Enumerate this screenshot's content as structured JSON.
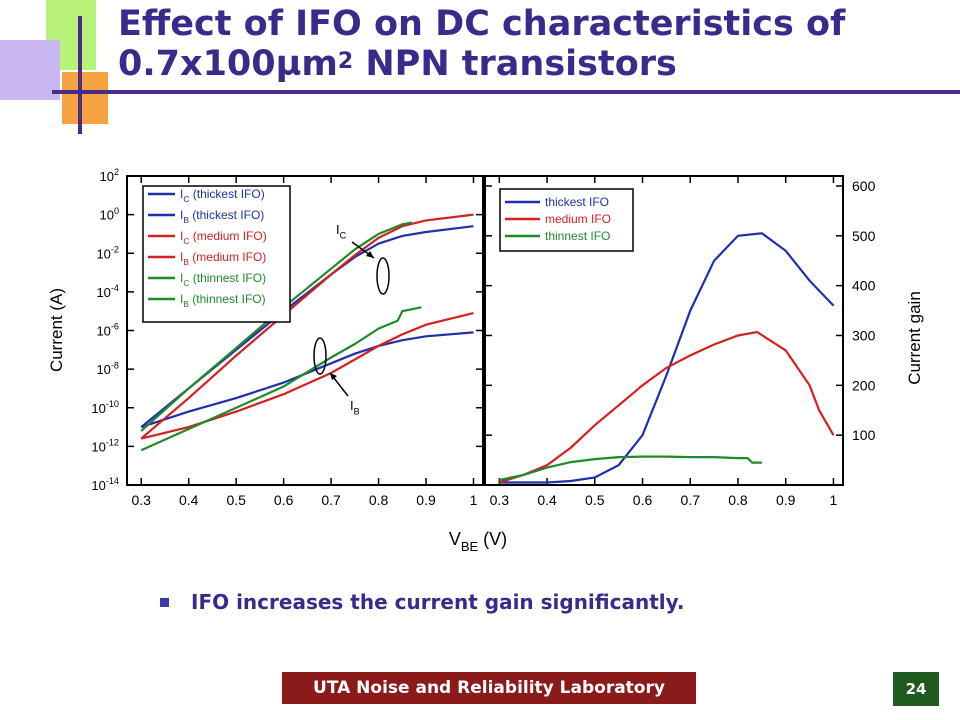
{
  "slide": {
    "title_main": "Effect of IFO on DC characteristics of 0.7x100µm",
    "title_sup": "2",
    "title_tail": " NPN transistors",
    "bullet": "IFO increases the current gain significantly.",
    "footer": "UTA Noise and Reliability Laboratory",
    "page_number": "24"
  },
  "colors": {
    "thickest": "#1f2fae",
    "medium": "#d42020",
    "thinnest": "#1f8a2a"
  },
  "chart_data": [
    {
      "type": "line",
      "ylabel": "Current (A)",
      "xlabel": "V_BE (V)",
      "x_ticks": [
        "0.3",
        "0.4",
        "0.5",
        "0.6",
        "0.7",
        "0.8",
        "0.9",
        "1"
      ],
      "y_scale": "log",
      "y_ticks": [
        {
          "mant": "10",
          "exp": "2"
        },
        {
          "mant": "10",
          "exp": "0"
        },
        {
          "mant": "10",
          "exp": "-2"
        },
        {
          "mant": "10",
          "exp": "-4"
        },
        {
          "mant": "10",
          "exp": "-6"
        },
        {
          "mant": "10",
          "exp": "-8"
        },
        {
          "mant": "10",
          "exp": "-10"
        },
        {
          "mant": "10",
          "exp": "-12"
        },
        {
          "mant": "10",
          "exp": "-14"
        }
      ],
      "xlim": [
        0.27,
        1.02
      ],
      "ylim_log10": [
        -14,
        2
      ],
      "annotations": [
        {
          "main": "I",
          "sub": "C"
        },
        {
          "main": "I",
          "sub": "B"
        }
      ],
      "legend": [
        {
          "main": "I",
          "sub": "C",
          "text": " (thickest IFO)",
          "color": "thickest"
        },
        {
          "main": "I",
          "sub": "B",
          "text": " (thickest IFO)",
          "color": "thickest"
        },
        {
          "main": "I",
          "sub": "C",
          "text": " (medium IFO)",
          "color": "medium"
        },
        {
          "main": "I",
          "sub": "B",
          "text": " (medium IFO)",
          "color": "medium"
        },
        {
          "main": "I",
          "sub": "C",
          "text": " (thinnest IFO)",
          "color": "thinnest"
        },
        {
          "main": "I",
          "sub": "B",
          "text": " (thinnest IFO)",
          "color": "thinnest"
        }
      ],
      "series": [
        {
          "color": "thickest",
          "x": [
            0.3,
            0.4,
            0.5,
            0.6,
            0.7,
            0.75,
            0.8,
            0.85,
            0.9,
            1.0
          ],
          "log10_y": [
            -11.0,
            -9.0,
            -7.0,
            -5.0,
            -3.1,
            -2.2,
            -1.5,
            -1.1,
            -0.9,
            -0.6
          ]
        },
        {
          "color": "thickest",
          "x": [
            0.3,
            0.4,
            0.5,
            0.6,
            0.7,
            0.75,
            0.8,
            0.85,
            0.9,
            1.0
          ],
          "log10_y": [
            -11.0,
            -10.2,
            -9.5,
            -8.7,
            -7.7,
            -7.2,
            -6.8,
            -6.5,
            -6.3,
            -6.1
          ]
        },
        {
          "color": "medium",
          "x": [
            0.3,
            0.4,
            0.5,
            0.6,
            0.7,
            0.75,
            0.8,
            0.85,
            0.9,
            1.0
          ],
          "log10_y": [
            -11.6,
            -9.5,
            -7.3,
            -5.2,
            -3.1,
            -2.1,
            -1.2,
            -0.6,
            -0.3,
            0.0
          ]
        },
        {
          "color": "medium",
          "x": [
            0.3,
            0.4,
            0.5,
            0.6,
            0.7,
            0.75,
            0.8,
            0.85,
            0.9,
            1.0
          ],
          "log10_y": [
            -11.6,
            -11.0,
            -10.2,
            -9.3,
            -8.2,
            -7.5,
            -6.8,
            -6.2,
            -5.7,
            -5.1
          ]
        },
        {
          "color": "thinnest",
          "x": [
            0.3,
            0.4,
            0.5,
            0.6,
            0.7,
            0.75,
            0.8,
            0.85,
            0.87
          ],
          "log10_y": [
            -11.2,
            -9.0,
            -6.9,
            -4.8,
            -2.8,
            -1.8,
            -1.0,
            -0.5,
            -0.4
          ]
        },
        {
          "color": "thinnest",
          "x": [
            0.3,
            0.4,
            0.5,
            0.6,
            0.7,
            0.75,
            0.8,
            0.84,
            0.85,
            0.89
          ],
          "log10_y": [
            -12.2,
            -11.1,
            -10.0,
            -8.9,
            -7.4,
            -6.7,
            -5.9,
            -5.5,
            -5.0,
            -4.8
          ]
        }
      ]
    },
    {
      "type": "line",
      "ylabel": "Current gain",
      "xlabel": "V_BE (V)",
      "x_ticks": [
        "0.3",
        "0.4",
        "0.5",
        "0.6",
        "0.7",
        "0.8",
        "0.9",
        "1"
      ],
      "y_ticks": [
        "100",
        "200",
        "300",
        "400",
        "500",
        "600"
      ],
      "xlim": [
        0.27,
        1.02
      ],
      "ylim": [
        0,
        620
      ],
      "legend": [
        {
          "text": "thickest IFO",
          "color": "thickest"
        },
        {
          "text": "medium IFO",
          "color": "medium"
        },
        {
          "text": "thinnest IFO",
          "color": "thinnest"
        }
      ],
      "series": [
        {
          "name": "thickest IFO",
          "color": "thickest",
          "x": [
            0.3,
            0.4,
            0.45,
            0.5,
            0.55,
            0.6,
            0.65,
            0.7,
            0.75,
            0.8,
            0.85,
            0.9,
            0.95,
            1.0
          ],
          "y": [
            5,
            5,
            8,
            15,
            40,
            100,
            220,
            350,
            450,
            500,
            505,
            470,
            410,
            360
          ]
        },
        {
          "name": "medium IFO",
          "color": "medium",
          "x": [
            0.3,
            0.35,
            0.4,
            0.45,
            0.5,
            0.55,
            0.6,
            0.65,
            0.7,
            0.75,
            0.8,
            0.84,
            0.9,
            0.95,
            0.97,
            1.0
          ],
          "y": [
            5,
            20,
            40,
            75,
            120,
            160,
            200,
            235,
            260,
            282,
            300,
            307,
            270,
            200,
            150,
            100
          ]
        },
        {
          "name": "thinnest IFO",
          "color": "thinnest",
          "x": [
            0.3,
            0.35,
            0.4,
            0.45,
            0.5,
            0.55,
            0.6,
            0.65,
            0.7,
            0.75,
            0.8,
            0.82,
            0.83,
            0.85
          ],
          "y": [
            10,
            20,
            35,
            46,
            52,
            56,
            57,
            57,
            56,
            56,
            54,
            54,
            45,
            45
          ]
        }
      ]
    }
  ]
}
